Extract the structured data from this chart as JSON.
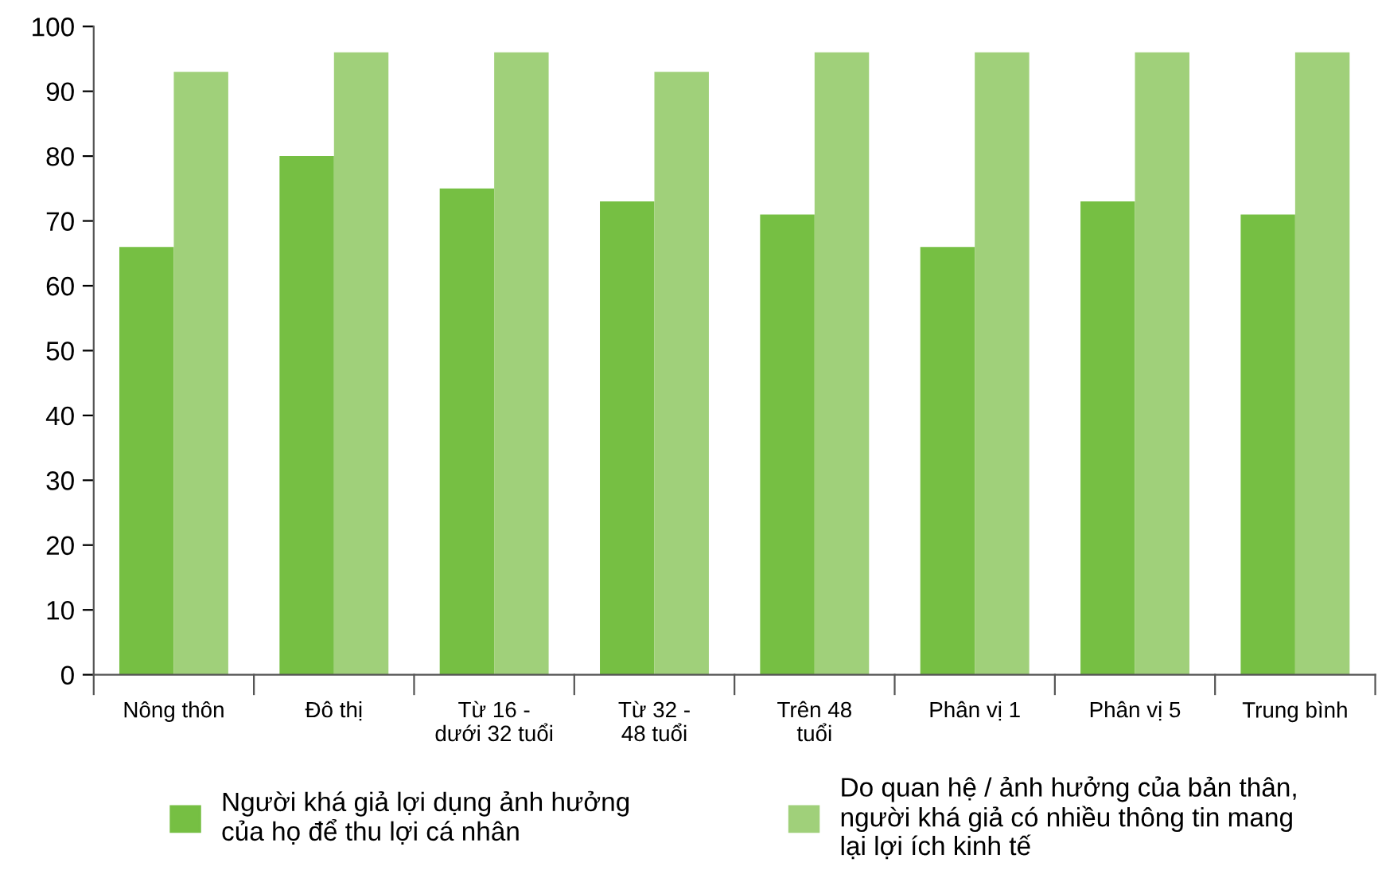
{
  "chart_data": {
    "type": "bar",
    "categories": [
      "Nông thôn",
      "Đô thị",
      "Từ 16 -\ndưới 32 tuổi",
      "Từ 32 -\n48 tuổi",
      "Trên 48\ntuổi",
      "Phân vị 1",
      "Phân vị 5",
      "Trung bình"
    ],
    "series": [
      {
        "name": "Người khá giả lợi dụng ảnh hưởng\ncủa họ để thu lợi cá nhân",
        "color": "#76bf43",
        "values": [
          66,
          80,
          75,
          73,
          71,
          66,
          73,
          71
        ]
      },
      {
        "name": "Do quan hệ / ảnh hưởng của bản thân,\nngười khá giả có nhiều thông tin mang\nlại lợi ích kinh tế",
        "color": "#a0d07a",
        "values": [
          93,
          96,
          96,
          93,
          96,
          96,
          96,
          96
        ]
      }
    ],
    "ylim": [
      0,
      100
    ],
    "yticks": [
      0,
      10,
      20,
      30,
      40,
      50,
      60,
      70,
      80,
      90,
      100
    ],
    "grid": false,
    "legend": "bottom"
  }
}
